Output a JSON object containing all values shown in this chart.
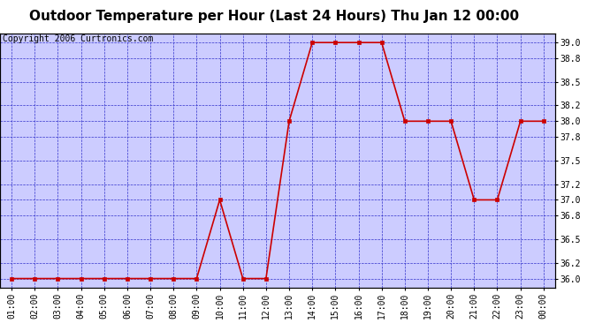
{
  "title": "Outdoor Temperature per Hour (Last 24 Hours) Thu Jan 12 00:00",
  "copyright": "Copyright 2006 Curtronics.com",
  "hours": [
    "01:00",
    "02:00",
    "03:00",
    "04:00",
    "05:00",
    "06:00",
    "07:00",
    "08:00",
    "09:00",
    "10:00",
    "11:00",
    "12:00",
    "13:00",
    "14:00",
    "15:00",
    "16:00",
    "17:00",
    "18:00",
    "19:00",
    "20:00",
    "21:00",
    "22:00",
    "23:00",
    "00:00"
  ],
  "temps": [
    36.0,
    36.0,
    36.0,
    36.0,
    36.0,
    36.0,
    36.0,
    36.0,
    36.0,
    37.0,
    36.0,
    36.0,
    38.0,
    39.0,
    39.0,
    39.0,
    39.0,
    38.0,
    38.0,
    38.0,
    37.0,
    37.0,
    38.0,
    38.0
  ],
  "yticks": [
    36.0,
    36.2,
    36.5,
    36.8,
    37.0,
    37.2,
    37.5,
    37.8,
    38.0,
    38.2,
    38.5,
    38.8,
    39.0
  ],
  "ymin": 35.88,
  "ymax": 39.12,
  "line_color": "#cc0000",
  "marker_color": "#cc0000",
  "outer_bg": "#ffffff",
  "plot_bg": "#ccccff",
  "grid_color": "#3333cc",
  "title_fontsize": 11,
  "tick_fontsize": 7,
  "copyright_fontsize": 7
}
